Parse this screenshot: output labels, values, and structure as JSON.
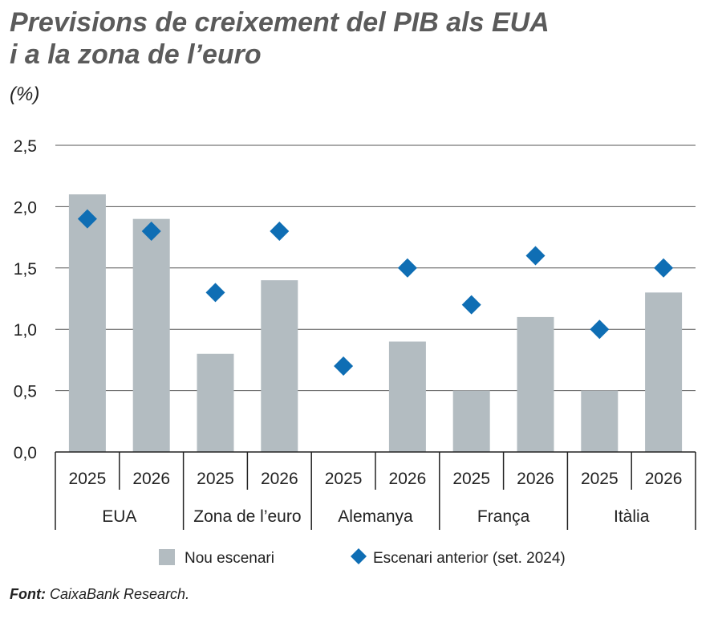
{
  "title_line1": "Previsions de creixement del PIB als EUA",
  "title_line2": "i a la zona de l’euro",
  "unit": "(%)",
  "source_label": "Font:",
  "source_text": " CaixaBank Research.",
  "colors": {
    "bars": "#b3bcc1",
    "markers": "#0f6eb4",
    "grid": "#555555"
  },
  "chart_data": {
    "type": "bar",
    "ylim": [
      0,
      2.5
    ],
    "yticks": [
      "0,0",
      "0,5",
      "1,0",
      "1,5",
      "2,0",
      "2,5"
    ],
    "ytick_values": [
      0,
      0.5,
      1,
      1.5,
      2,
      2.5
    ],
    "grid": true,
    "legend_placement": "bottom",
    "groups": [
      "EUA",
      "Zona de l’euro",
      "Alemanya",
      "França",
      "Itàlia"
    ],
    "categories": [
      "2025",
      "2026",
      "2025",
      "2026",
      "2025",
      "2026",
      "2025",
      "2026",
      "2025",
      "2026"
    ],
    "series": [
      {
        "name": "Nou escenari",
        "kind": "bar",
        "values": [
          2.1,
          1.9,
          0.8,
          1.4,
          0.0,
          0.9,
          0.5,
          1.1,
          0.5,
          1.3
        ]
      },
      {
        "name": "Escenari anterior (set. 2024)",
        "kind": "diamond",
        "values": [
          1.9,
          1.8,
          1.3,
          1.8,
          0.7,
          1.5,
          1.2,
          1.6,
          1.0,
          1.5
        ]
      }
    ]
  }
}
